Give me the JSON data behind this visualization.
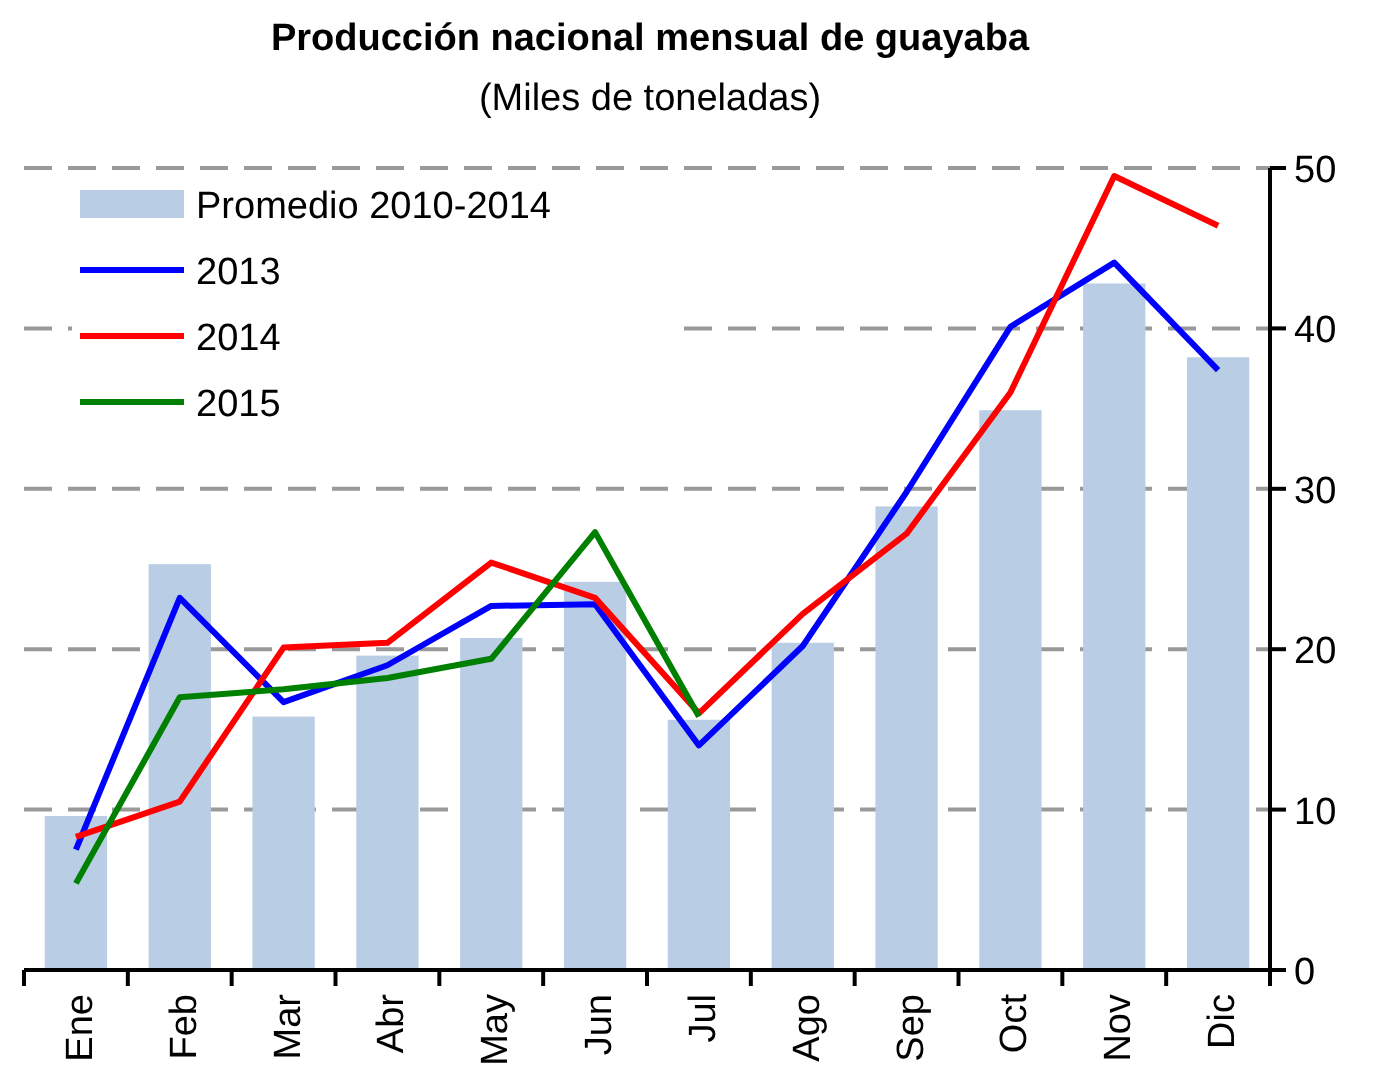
{
  "chart_data": {
    "type": "bar",
    "title": "Producción nacional mensual de guayaba",
    "subtitle": "(Miles de toneladas)",
    "categories": [
      "Ene",
      "Feb",
      "Mar",
      "Abr",
      "May",
      "Jun",
      "Jul",
      "Ago",
      "Sep",
      "Oct",
      "Nov",
      "Dic"
    ],
    "series": [
      {
        "name": "Promedio 2010-2014",
        "color": "#b9cde5",
        "values": [
          9.6,
          25.3,
          15.8,
          19.6,
          20.7,
          24.2,
          15.6,
          20.4,
          28.9,
          34.9,
          42.8,
          38.2
        ]
      },
      {
        "name": "2013",
        "type": "line",
        "color": "#0000ff",
        "values": [
          7.5,
          23.2,
          16.7,
          19.0,
          22.7,
          22.8,
          14.0,
          20.2,
          29.8,
          40.1,
          44.1,
          37.4
        ]
      },
      {
        "name": "2014",
        "type": "line",
        "color": "#ff0000",
        "values": [
          8.3,
          10.5,
          20.1,
          20.4,
          25.4,
          23.2,
          16.0,
          22.2,
          27.2,
          36.0,
          49.5,
          46.4
        ]
      },
      {
        "name": "2015",
        "type": "line",
        "color": "#008000",
        "values": [
          5.4,
          17.0,
          17.5,
          18.2,
          19.4,
          27.3,
          15.8,
          null,
          null,
          null,
          null,
          null
        ]
      }
    ],
    "ylim": [
      0,
      50
    ],
    "yticks": [
      0,
      10,
      20,
      30,
      40,
      50
    ],
    "grid": "y",
    "legend": "top left",
    "line_style": "solid",
    "marker": "none"
  }
}
